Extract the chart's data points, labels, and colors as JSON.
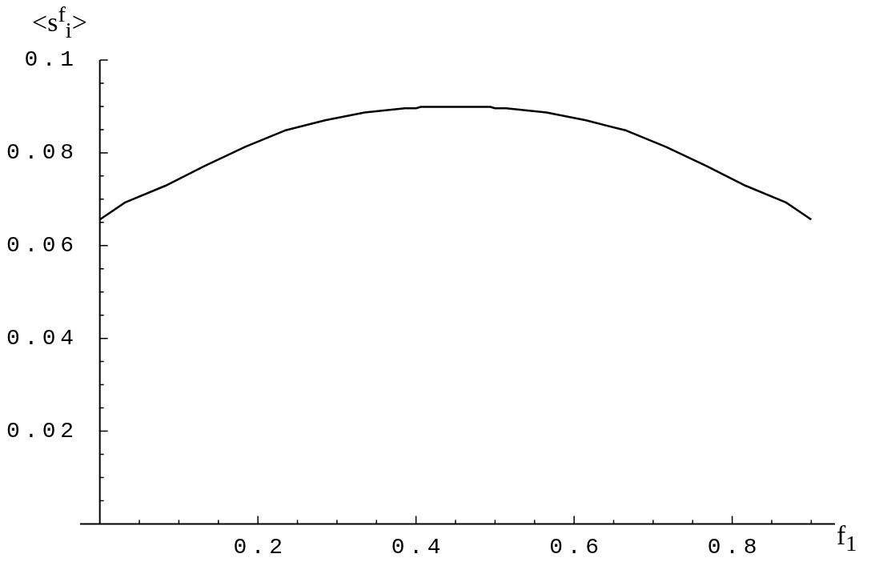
{
  "chart_data": {
    "type": "line",
    "xlabel": "f$_{1}$",
    "ylabel": "<s$^{f}$$_{i}$>",
    "x": [
      0,
      0.032,
      0.083,
      0.133,
      0.184,
      0.234,
      0.285,
      0.335,
      0.386,
      0.4,
      0.406,
      0.45,
      0.494,
      0.5,
      0.514,
      0.565,
      0.615,
      0.666,
      0.716,
      0.767,
      0.817,
      0.868,
      0.9
    ],
    "series": [
      {
        "color": "#000000",
        "values": [
          0.0656,
          0.0693,
          0.0729,
          0.0772,
          0.0813,
          0.0848,
          0.087,
          0.0887,
          0.0896,
          0.0896,
          0.0899,
          0.0899,
          0.0899,
          0.0896,
          0.0896,
          0.0887,
          0.087,
          0.0848,
          0.0813,
          0.0772,
          0.0729,
          0.0693,
          0.0656
        ]
      }
    ],
    "xlim": [
      -0.025,
      0.93
    ],
    "ylim": [
      0,
      0.1
    ],
    "xticks": [
      {
        "value": 0.05,
        "label": null
      },
      {
        "value": 0.1,
        "label": null
      },
      {
        "value": 0.15,
        "label": null
      },
      0.2,
      {
        "value": 0.25,
        "label": null
      },
      {
        "value": 0.3,
        "label": null
      },
      {
        "value": 0.35,
        "label": null
      },
      0.4,
      {
        "value": 0.45,
        "label": null
      },
      {
        "value": 0.5,
        "label": null
      },
      {
        "value": 0.55,
        "label": null
      },
      0.6,
      {
        "value": 0.65,
        "label": null
      },
      {
        "value": 0.7,
        "label": null
      },
      {
        "value": 0.75,
        "label": null
      },
      0.8,
      {
        "value": 0.85,
        "label": null
      },
      {
        "value": 0.9,
        "label": null
      }
    ],
    "yticks": [
      {
        "value": 0.005,
        "label": null
      },
      {
        "value": 0.01,
        "label": null
      },
      {
        "value": 0.015,
        "label": null
      },
      0.02,
      {
        "value": 0.025,
        "label": null
      },
      {
        "value": 0.03,
        "label": null
      },
      {
        "value": 0.035,
        "label": null
      },
      0.04,
      {
        "value": 0.045,
        "label": null
      },
      {
        "value": 0.05,
        "label": null
      },
      {
        "value": 0.055,
        "label": null
      },
      0.06,
      {
        "value": 0.065,
        "label": null
      },
      {
        "value": 0.07,
        "label": null
      },
      {
        "value": 0.075,
        "label": null
      },
      0.08,
      {
        "value": 0.085,
        "label": null
      },
      {
        "value": 0.09,
        "label": null
      },
      {
        "value": 0.095,
        "label": null
      },
      0.1
    ],
    "grid": false,
    "legend": false,
    "marker": "none",
    "line_style": "solid"
  }
}
